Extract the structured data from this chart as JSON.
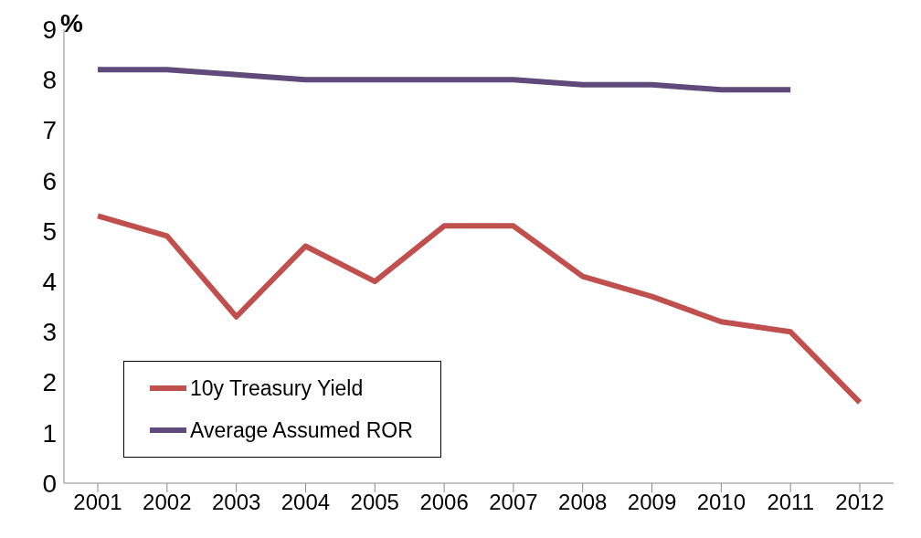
{
  "chart_data": {
    "type": "line",
    "ylabel": "%",
    "categories": [
      "2001",
      "2002",
      "2003",
      "2004",
      "2005",
      "2006",
      "2007",
      "2008",
      "2009",
      "2010",
      "2011",
      "2012"
    ],
    "series": [
      {
        "name": "10y Treasury Yield",
        "color": "#c0504d",
        "values": [
          5.3,
          4.9,
          3.3,
          4.7,
          4.0,
          5.1,
          5.1,
          4.1,
          3.7,
          3.2,
          3.0,
          1.6
        ]
      },
      {
        "name": "Average Assumed ROR",
        "color": "#604a7b",
        "values": [
          8.2,
          8.2,
          8.1,
          8.0,
          8.0,
          8.0,
          8.0,
          7.9,
          7.9,
          7.8,
          7.8,
          null
        ]
      }
    ],
    "ylim": [
      0,
      9
    ],
    "yticks": [
      0,
      1,
      2,
      3,
      4,
      5,
      6,
      7,
      8,
      9
    ],
    "grid": false,
    "legend": "bottom left",
    "marker": "none",
    "line_style": "solid"
  }
}
